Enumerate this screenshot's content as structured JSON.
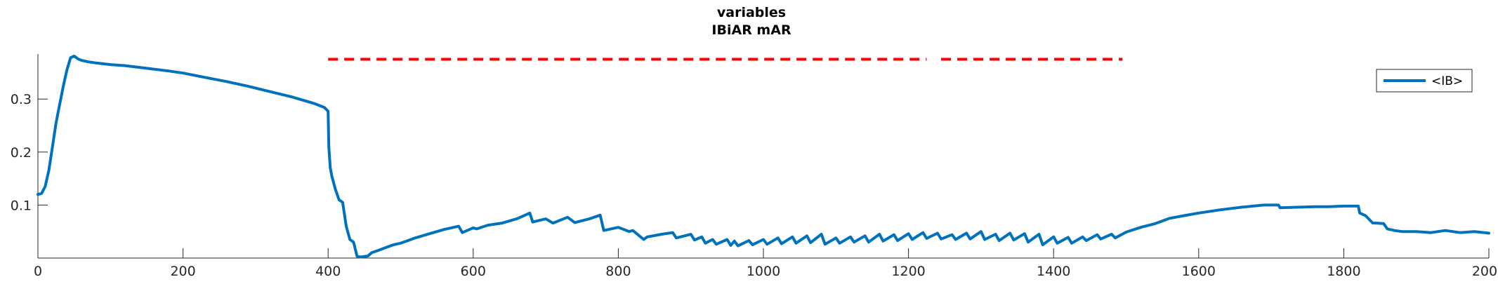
{
  "chart_data": {
    "type": "line",
    "title_lines": [
      "variables",
      "IBiAR mAR"
    ],
    "xlabel": "",
    "ylabel": "",
    "xlim": [
      0,
      2000
    ],
    "ylim": [
      0,
      0.385
    ],
    "xticks": [
      0,
      200,
      400,
      600,
      800,
      1000,
      1200,
      1400,
      1600,
      1800,
      2000
    ],
    "xtick_labels": [
      "0",
      "200",
      "400",
      "600",
      "800",
      "1000",
      "1200",
      "1400",
      "1600",
      "1800",
      "2000"
    ],
    "yticks": [
      0.1,
      0.2,
      0.3
    ],
    "ytick_labels": [
      "0.1",
      "0.2",
      "0.3"
    ],
    "grid": false,
    "legend_position": "top-right",
    "series": [
      {
        "name": "<IB>",
        "color": "#0072BD",
        "x": [
          0,
          5,
          10,
          15,
          20,
          25,
          30,
          35,
          40,
          45,
          50,
          55,
          60,
          70,
          80,
          100,
          120,
          150,
          180,
          200,
          230,
          260,
          290,
          320,
          350,
          380,
          395,
          400,
          401,
          403,
          405,
          410,
          415,
          420,
          425,
          430,
          435,
          440,
          445,
          450,
          455,
          460,
          470,
          480,
          490,
          500,
          510,
          520,
          530,
          540,
          550,
          560,
          570,
          580,
          585,
          600,
          605,
          620,
          640,
          660,
          678,
          682,
          700,
          710,
          730,
          740,
          760,
          775,
          780,
          800,
          815,
          820,
          835,
          840,
          860,
          875,
          880,
          900,
          905,
          915,
          920,
          930,
          935,
          950,
          955,
          960,
          965,
          980,
          985,
          1000,
          1005,
          1020,
          1025,
          1040,
          1045,
          1060,
          1065,
          1080,
          1085,
          1100,
          1105,
          1120,
          1125,
          1140,
          1145,
          1160,
          1165,
          1180,
          1185,
          1200,
          1205,
          1220,
          1225,
          1240,
          1245,
          1260,
          1265,
          1280,
          1285,
          1300,
          1305,
          1320,
          1325,
          1340,
          1345,
          1360,
          1365,
          1380,
          1385,
          1400,
          1405,
          1420,
          1425,
          1440,
          1445,
          1460,
          1465,
          1480,
          1485,
          1500,
          1520,
          1540,
          1560,
          1580,
          1600,
          1630,
          1660,
          1690,
          1700,
          1710,
          1712,
          1740,
          1760,
          1780,
          1800,
          1820,
          1822,
          1830,
          1840,
          1845,
          1855,
          1860,
          1870,
          1880,
          1900,
          1920,
          1940,
          1960,
          1980,
          2000
        ],
        "values": [
          0.12,
          0.122,
          0.135,
          0.165,
          0.21,
          0.255,
          0.29,
          0.325,
          0.355,
          0.378,
          0.381,
          0.376,
          0.373,
          0.37,
          0.368,
          0.365,
          0.363,
          0.358,
          0.353,
          0.349,
          0.341,
          0.333,
          0.324,
          0.314,
          0.304,
          0.292,
          0.284,
          0.277,
          0.21,
          0.17,
          0.155,
          0.13,
          0.11,
          0.105,
          0.06,
          0.035,
          0.03,
          0.003,
          0.002,
          0.003,
          0.004,
          0.01,
          0.015,
          0.02,
          0.025,
          0.028,
          0.033,
          0.038,
          0.042,
          0.046,
          0.05,
          0.054,
          0.057,
          0.06,
          0.048,
          0.057,
          0.055,
          0.062,
          0.066,
          0.074,
          0.085,
          0.068,
          0.074,
          0.066,
          0.077,
          0.067,
          0.074,
          0.081,
          0.052,
          0.058,
          0.05,
          0.052,
          0.035,
          0.04,
          0.045,
          0.048,
          0.038,
          0.045,
          0.034,
          0.04,
          0.028,
          0.035,
          0.026,
          0.035,
          0.024,
          0.032,
          0.023,
          0.033,
          0.025,
          0.035,
          0.026,
          0.038,
          0.027,
          0.04,
          0.028,
          0.042,
          0.029,
          0.045,
          0.026,
          0.038,
          0.028,
          0.04,
          0.03,
          0.042,
          0.03,
          0.045,
          0.032,
          0.044,
          0.033,
          0.046,
          0.035,
          0.048,
          0.037,
          0.047,
          0.036,
          0.044,
          0.035,
          0.047,
          0.036,
          0.05,
          0.035,
          0.045,
          0.033,
          0.047,
          0.034,
          0.046,
          0.03,
          0.045,
          0.025,
          0.04,
          0.028,
          0.039,
          0.028,
          0.04,
          0.033,
          0.044,
          0.036,
          0.045,
          0.038,
          0.049,
          0.058,
          0.065,
          0.075,
          0.08,
          0.085,
          0.091,
          0.096,
          0.1,
          0.1,
          0.1,
          0.095,
          0.096,
          0.097,
          0.097,
          0.098,
          0.098,
          0.085,
          0.08,
          0.066,
          0.066,
          0.065,
          0.055,
          0.052,
          0.05,
          0.05,
          0.048,
          0.052,
          0.048,
          0.05,
          0.047
        ]
      }
    ],
    "annotations": [
      {
        "type": "dashed-hline",
        "color": "#FF0000",
        "y": 0.375,
        "segments": [
          [
            400,
            1225
          ],
          [
            1245,
            1495
          ]
        ]
      }
    ]
  }
}
